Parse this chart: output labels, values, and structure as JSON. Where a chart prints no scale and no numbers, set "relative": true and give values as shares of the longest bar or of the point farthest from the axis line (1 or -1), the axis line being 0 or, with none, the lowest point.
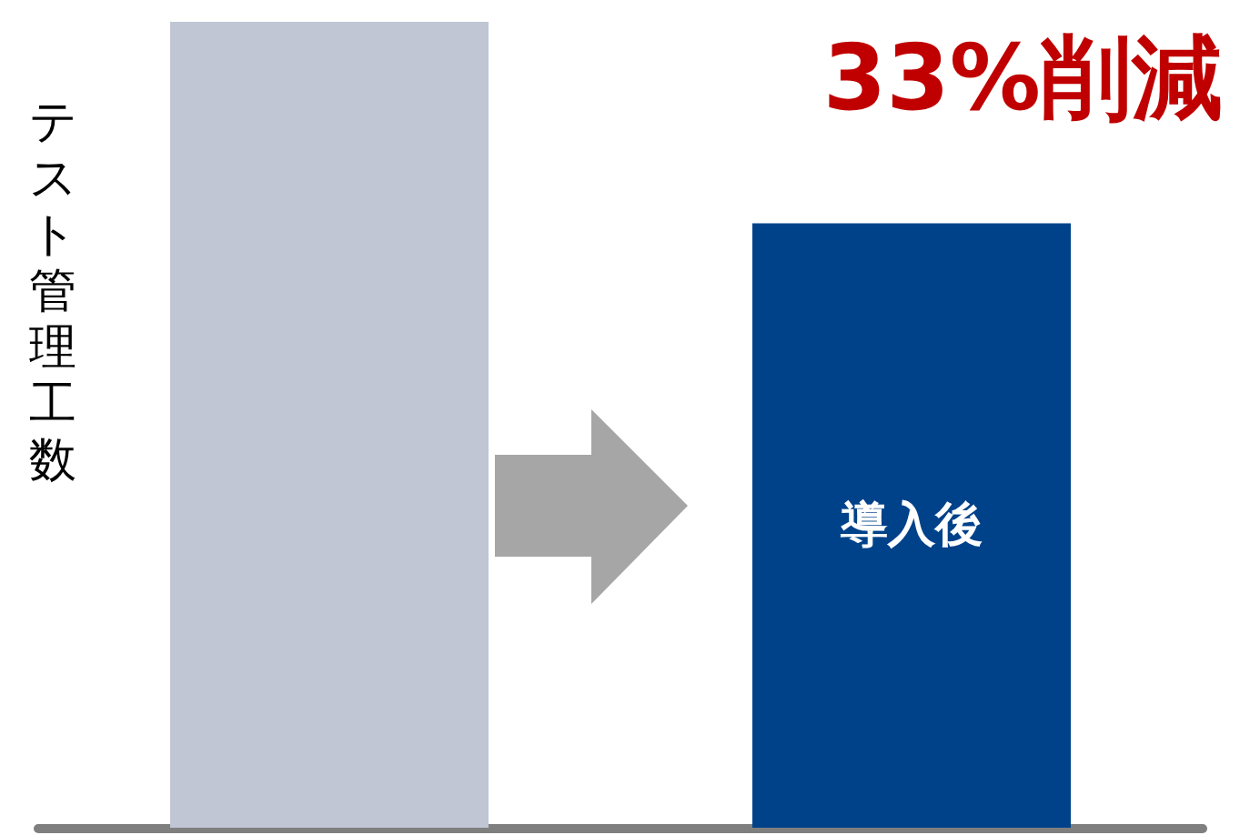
{
  "chart_data": {
    "type": "bar",
    "relative": true,
    "ylabel": "テスト管理工数",
    "categories": [
      null,
      "導入後"
    ],
    "values": [
      1,
      0.75
    ],
    "colors": [
      "#c0c6d3",
      "#00428a"
    ],
    "annotations": [
      "33%削減"
    ]
  }
}
